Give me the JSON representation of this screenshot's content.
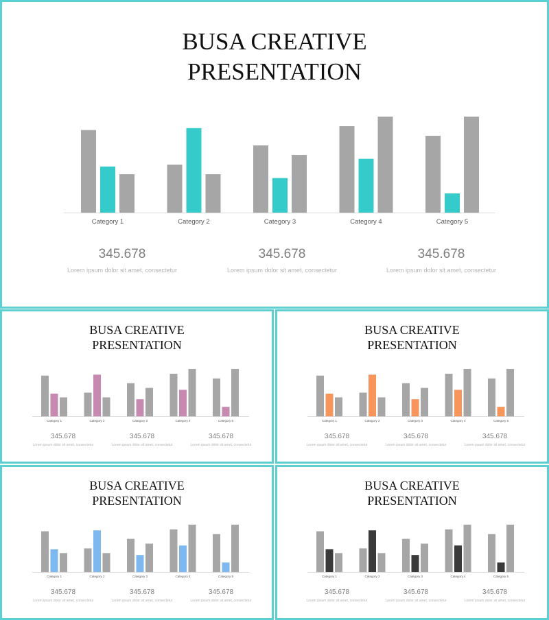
{
  "slides": [
    {
      "title_line1": "BUSA CREATIVE",
      "title_line2": "PRESENTATION",
      "accent": "#36cbcb",
      "stats": [
        {
          "value": "345.678",
          "caption": "Lorem ipsum dolor sit amet, consectetur"
        },
        {
          "value": "345.678",
          "caption": "Lorem ipsum dolor sit amet, consectetur"
        },
        {
          "value": "345.678",
          "caption": "Lorem ipsum dolor sit amet, consectetur"
        }
      ]
    },
    {
      "title_line1": "BUSA CREATIVE",
      "title_line2": "PRESENTATION",
      "accent": "#c68ab0",
      "stats": [
        {
          "value": "345.678",
          "caption": "Lorem ipsum dolor sit amet, consectetur"
        },
        {
          "value": "345.678",
          "caption": "Lorem ipsum dolor sit amet, consectetur"
        },
        {
          "value": "345.678",
          "caption": "Lorem ipsum dolor sit amet, consectetur"
        }
      ]
    },
    {
      "title_line1": "BUSA CREATIVE",
      "title_line2": "PRESENTATION",
      "accent": "#f7955b",
      "stats": [
        {
          "value": "345.678",
          "caption": "Lorem ipsum dolor sit amet, consectetur"
        },
        {
          "value": "345.678",
          "caption": "Lorem ipsum dolor sit amet, consectetur"
        },
        {
          "value": "345.678",
          "caption": "Lorem ipsum dolor sit amet, consectetur"
        }
      ]
    },
    {
      "title_line1": "BUSA CREATIVE",
      "title_line2": "PRESENTATION",
      "accent": "#7db9f0",
      "stats": [
        {
          "value": "345.678",
          "caption": "Lorem ipsum dolor sit amet, consectetur"
        },
        {
          "value": "345.678",
          "caption": "Lorem ipsum dolor sit amet, consectetur"
        },
        {
          "value": "345.678",
          "caption": "Lorem ipsum dolor sit amet, consectetur"
        }
      ]
    },
    {
      "title_line1": "BUSA CREATIVE",
      "title_line2": "PRESENTATION",
      "accent": "#3a3a3a",
      "stats": [
        {
          "value": "345.678",
          "caption": "Lorem ipsum dolor sit amet, consectetur"
        },
        {
          "value": "345.678",
          "caption": "Lorem ipsum dolor sit amet, consectetur"
        },
        {
          "value": "345.678",
          "caption": "Lorem ipsum dolor sit amet, consectetur"
        }
      ]
    }
  ],
  "chart_data": {
    "type": "bar",
    "categories": [
      "Category 1",
      "Category 2",
      "Category 3",
      "Category 4",
      "Category 5"
    ],
    "series": [
      {
        "values": [
          4.3,
          2.5,
          3.5,
          4.5,
          4.0
        ],
        "color": "#a6a6a6"
      },
      {
        "values": [
          2.4,
          4.4,
          1.8,
          2.8,
          1.0
        ],
        "color": "accent"
      },
      {
        "values": [
          2.0,
          2.0,
          3.0,
          5.0,
          5.0
        ],
        "color": "#a6a6a6"
      }
    ],
    "ylim": [
      0,
      5
    ],
    "grid": false,
    "legend": "none",
    "gray_color": "#a6a6a6",
    "axis_color": "#d9d9d9",
    "label_color": "#595959"
  }
}
